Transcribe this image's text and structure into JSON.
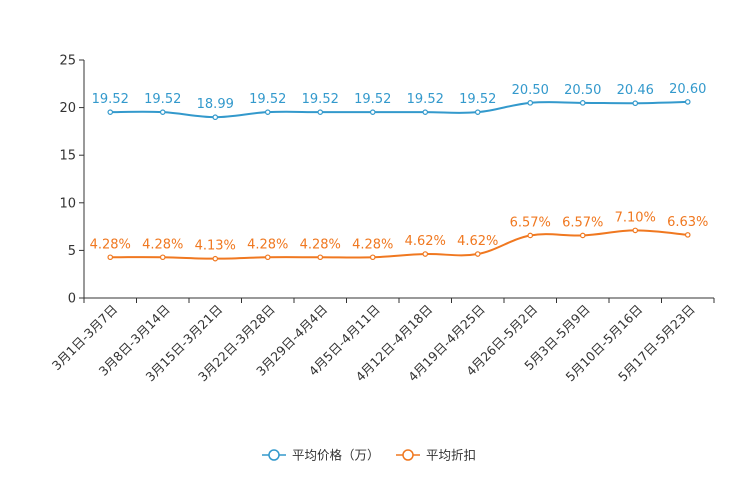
{
  "chart_data": {
    "type": "line",
    "categories": [
      "3月1日-3月7日",
      "3月8日-3月14日",
      "3月15日-3月21日",
      "3月22日-3月28日",
      "3月29日-4月4日",
      "4月5日-4月11日",
      "4月12日-4月18日",
      "4月19日-4月25日",
      "4月26日-5月2日",
      "5月3日-5月9日",
      "5月10日-5月16日",
      "5月17日-5月23日"
    ],
    "ylim": [
      0,
      25
    ],
    "yticks": [
      "0",
      "5",
      "10",
      "15",
      "20",
      "25"
    ],
    "legend_position": "bottom-center",
    "series": [
      {
        "name": "平均价格（万）",
        "color": "#3399CC",
        "values": [
          19.52,
          19.52,
          18.99,
          19.52,
          19.52,
          19.52,
          19.52,
          19.52,
          20.5,
          20.5,
          20.46,
          20.6
        ],
        "labels": [
          "19.52",
          "19.52",
          "18.99",
          "19.52",
          "19.52",
          "19.52",
          "19.52",
          "19.52",
          "20.50",
          "20.50",
          "20.46",
          "20.60"
        ]
      },
      {
        "name": "平均折扣",
        "color": "#F07820",
        "values": [
          4.28,
          4.28,
          4.13,
          4.28,
          4.28,
          4.28,
          4.62,
          4.62,
          6.57,
          6.57,
          7.1,
          6.63
        ],
        "labels": [
          "4.28%",
          "4.28%",
          "4.13%",
          "4.28%",
          "4.28%",
          "4.28%",
          "4.62%",
          "4.62%",
          "6.57%",
          "6.57%",
          "7.10%",
          "6.63%"
        ]
      }
    ]
  }
}
